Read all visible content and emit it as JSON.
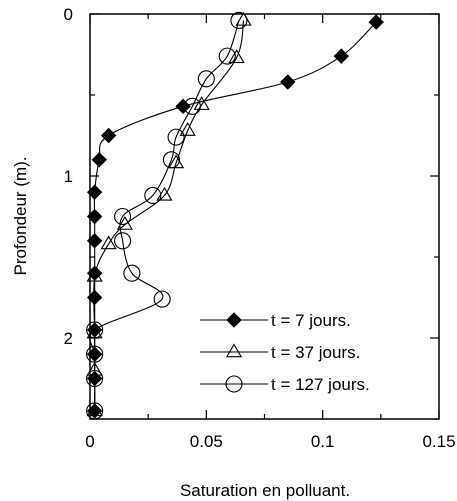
{
  "chart_data": {
    "type": "scatter",
    "xlabel": "Saturation en polluant.",
    "ylabel": "Profondeur (m).",
    "xlim": [
      0,
      0.15
    ],
    "ylim": [
      0,
      2.5
    ],
    "y_inverted": true,
    "x_ticks": [
      0,
      0.05,
      0.1,
      0.15
    ],
    "x_tick_labels": [
      "0",
      "0.05",
      "0.1",
      "0.15"
    ],
    "y_ticks": [
      0,
      1,
      2
    ],
    "y_tick_labels": [
      "0",
      "1",
      "2"
    ],
    "grid": false,
    "legend_position": "lower-right",
    "series": [
      {
        "name": "t = 7 jours.",
        "marker": "diamond-filled",
        "points": [
          [
            0.123,
            0.05
          ],
          [
            0.108,
            0.26
          ],
          [
            0.085,
            0.42
          ],
          [
            0.04,
            0.57
          ],
          [
            0.008,
            0.75
          ],
          [
            0.004,
            0.9
          ],
          [
            0.002,
            1.1
          ],
          [
            0.002,
            1.25
          ],
          [
            0.002,
            1.4
          ],
          [
            0.002,
            1.6
          ],
          [
            0.002,
            1.75
          ],
          [
            0.002,
            1.95
          ],
          [
            0.002,
            2.1
          ],
          [
            0.002,
            2.25
          ],
          [
            0.002,
            2.45
          ]
        ]
      },
      {
        "name": "t = 37 jours.",
        "marker": "triangle-open",
        "points": [
          [
            0.066,
            0.04
          ],
          [
            0.063,
            0.27
          ],
          [
            0.048,
            0.56
          ],
          [
            0.042,
            0.72
          ],
          [
            0.037,
            0.92
          ],
          [
            0.032,
            1.12
          ],
          [
            0.015,
            1.3
          ],
          [
            0.008,
            1.42
          ],
          [
            0.002,
            1.62
          ],
          [
            0.002,
            1.97
          ],
          [
            0.002,
            2.2
          ],
          [
            0.002,
            2.45
          ]
        ]
      },
      {
        "name": "t = 127 jours.",
        "marker": "circle-open",
        "points": [
          [
            0.064,
            0.04
          ],
          [
            0.059,
            0.26
          ],
          [
            0.05,
            0.4
          ],
          [
            0.044,
            0.57
          ],
          [
            0.037,
            0.76
          ],
          [
            0.035,
            0.9
          ],
          [
            0.027,
            1.12
          ],
          [
            0.014,
            1.25
          ],
          [
            0.014,
            1.4
          ],
          [
            0.018,
            1.6
          ],
          [
            0.031,
            1.76
          ],
          [
            0.002,
            1.95
          ],
          [
            0.002,
            2.1
          ],
          [
            0.002,
            2.25
          ],
          [
            0.002,
            2.45
          ]
        ]
      }
    ]
  }
}
